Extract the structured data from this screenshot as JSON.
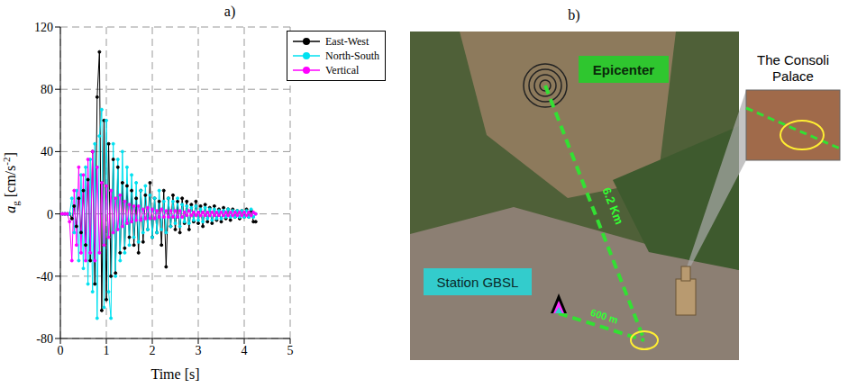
{
  "chart_data": {
    "type": "line",
    "title": "a)",
    "x_label": "Time [s]",
    "y_label": {
      "symbol": "a",
      "subscript": "g",
      "unit": "[cm/s",
      "exponent": "-2",
      "close": "]"
    },
    "xlim": [
      0,
      5
    ],
    "xticks": [
      0,
      1,
      2,
      3,
      4,
      5
    ],
    "ylim": [
      -80,
      120
    ],
    "yticks": [
      -80,
      -40,
      0,
      40,
      80,
      120
    ],
    "grid": true,
    "legend": "upper right",
    "marker": "circle",
    "x": [
      0,
      0.05,
      0.1,
      0.15,
      0.2,
      0.25,
      0.3,
      0.35,
      0.4,
      0.45,
      0.5,
      0.55,
      0.6,
      0.65,
      0.7,
      0.75,
      0.8,
      0.85,
      0.9,
      0.95,
      1.0,
      1.05,
      1.1,
      1.15,
      1.2,
      1.25,
      1.3,
      1.35,
      1.4,
      1.45,
      1.5,
      1.55,
      1.6,
      1.65,
      1.7,
      1.75,
      1.8,
      1.85,
      1.9,
      1.95,
      2.0,
      2.05,
      2.1,
      2.15,
      2.2,
      2.25,
      2.3,
      2.35,
      2.4,
      2.45,
      2.5,
      2.55,
      2.6,
      2.65,
      2.7,
      2.75,
      2.8,
      2.85,
      2.9,
      2.95,
      3.0,
      3.05,
      3.1,
      3.15,
      3.2,
      3.25,
      3.3,
      3.35,
      3.4,
      3.45,
      3.5,
      3.55,
      3.6,
      3.65,
      3.7,
      3.75,
      3.8,
      3.85,
      3.9,
      3.95,
      4.0,
      4.05,
      4.1,
      4.15,
      4.2,
      4.25
    ],
    "series": [
      {
        "name": "East-West",
        "color": "#000000",
        "values": [
          0,
          0,
          0,
          0,
          0,
          -3,
          5,
          -8,
          10,
          -12,
          15,
          -20,
          22,
          -30,
          40,
          -45,
          75,
          104,
          -62,
          60,
          -55,
          45,
          -40,
          35,
          -38,
          30,
          -25,
          20,
          -22,
          18,
          -15,
          15,
          -20,
          10,
          -25,
          15,
          -18,
          12,
          -10,
          20,
          -15,
          10,
          -12,
          8,
          -20,
          15,
          -34,
          10,
          -8,
          12,
          -10,
          8,
          -12,
          10,
          -6,
          8,
          -10,
          6,
          -5,
          8,
          -6,
          5,
          -8,
          6,
          -5,
          4,
          -6,
          5,
          -4,
          3,
          -5,
          4,
          -3,
          3,
          -4,
          3,
          -2,
          2,
          -3,
          2,
          -2,
          3,
          -2,
          2,
          -5,
          -5
        ]
      },
      {
        "name": "North-South",
        "color": "#00e1f0",
        "values": [
          0,
          0,
          0,
          0,
          0,
          10,
          -12,
          15,
          -30,
          25,
          -35,
          30,
          -45,
          35,
          -50,
          45,
          -67,
          50,
          67,
          -60,
          60,
          -50,
          -67,
          45,
          -40,
          35,
          -30,
          40,
          -25,
          30,
          -20,
          25,
          -15,
          20,
          -18,
          15,
          -12,
          18,
          -10,
          12,
          -15,
          10,
          -12,
          15,
          -10,
          8,
          -12,
          10,
          -8,
          8,
          -6,
          10,
          -8,
          6,
          -5,
          5,
          -6,
          4,
          -4,
          5,
          -4,
          3,
          -5,
          4,
          -3,
          3,
          -4,
          3,
          -3,
          2,
          -3,
          2,
          -2,
          3,
          -2,
          2,
          -2,
          2,
          -2,
          2,
          -2,
          2,
          -2,
          3,
          -2,
          0
        ]
      },
      {
        "name": "Vertical",
        "color": "#ff00ff",
        "values": [
          0,
          0,
          0,
          0,
          -5,
          -30,
          15,
          -20,
          30,
          -25,
          25,
          -30,
          35,
          -25,
          40,
          -30,
          30,
          -25,
          20,
          -20,
          18,
          -15,
          15,
          -12,
          10,
          -10,
          12,
          -8,
          8,
          -6,
          6,
          -5,
          5,
          -4,
          5,
          -4,
          3,
          -3,
          4,
          -3,
          3,
          -3,
          2,
          -2,
          3,
          -2,
          2,
          -2,
          2,
          -2,
          2,
          -2,
          2,
          -2,
          1,
          -1,
          2,
          -1,
          1,
          -1,
          1,
          -1,
          1,
          -1,
          1,
          -1,
          1,
          -1,
          1,
          -1,
          1,
          -1,
          1,
          -1,
          1,
          -1,
          1,
          -1,
          1,
          -1,
          1,
          -1,
          1,
          -1,
          1,
          0
        ]
      }
    ]
  },
  "map_panel": {
    "letter": "b)",
    "epicenter": "Epicenter",
    "station": "Station GBSL",
    "palace": "The Consoli Palace",
    "epicenter_distance": "6.2 Km",
    "station_distance": "600 m"
  }
}
